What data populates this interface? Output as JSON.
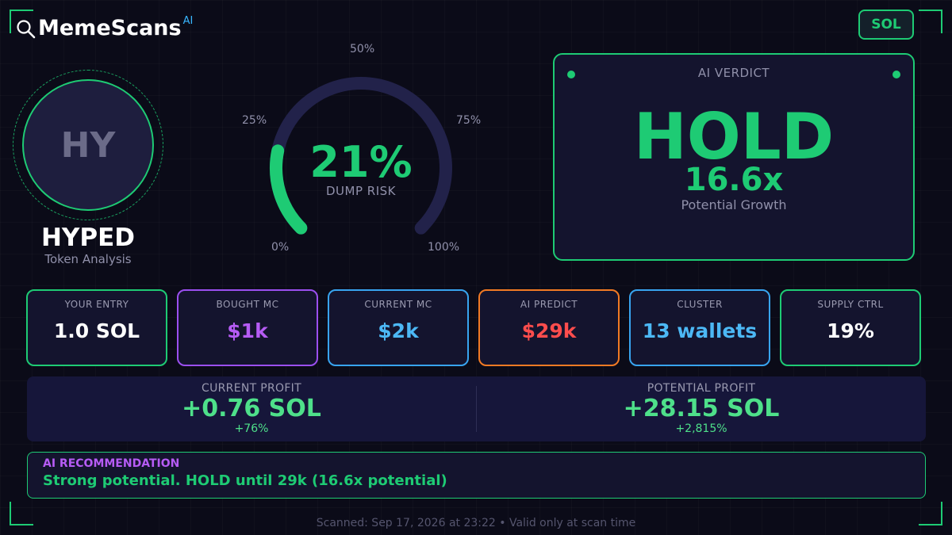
{
  "brand": {
    "name": "MemeScans",
    "superscript": "AI",
    "icon": "magnifier-icon"
  },
  "chain_badge": {
    "label": "SOL"
  },
  "token": {
    "avatar_initials": "HY",
    "name": "HYPED",
    "subtitle": "Token Analysis"
  },
  "gauge": {
    "value_label": "21%",
    "value": 21,
    "label": "DUMP RISK",
    "ticks": [
      "0%",
      "25%",
      "50%",
      "75%",
      "100%"
    ]
  },
  "verdict": {
    "title": "AI VERDICT",
    "decision": "HOLD",
    "multiplier": "16.6x",
    "subtitle": "Potential Growth"
  },
  "stats": [
    {
      "label": "YOUR ENTRY",
      "value": "1.0 SOL",
      "border": "#1ecb74",
      "color": "#ffffff"
    },
    {
      "label": "BOUGHT MC",
      "value": "$1k",
      "border": "#9b4ff0",
      "color": "#b65cf5"
    },
    {
      "label": "CURRENT MC",
      "value": "$2k",
      "border": "#38a4f0",
      "color": "#4cb8f5"
    },
    {
      "label": "AI PREDICT",
      "value": "$29k",
      "border": "#f27a24",
      "color": "#ff4d4d"
    },
    {
      "label": "CLUSTER",
      "value": "13 wallets",
      "border": "#38a4f0",
      "color": "#4cb8f5"
    },
    {
      "label": "SUPPLY CTRL",
      "value": "19%",
      "border": "#1ecb74",
      "color": "#ffffff"
    }
  ],
  "profit": {
    "current": {
      "label": "CURRENT PROFIT",
      "value": "+0.76 SOL",
      "pct": "+76%"
    },
    "potential": {
      "label": "POTENTIAL PROFIT",
      "value": "+28.15 SOL",
      "pct": "+2,815%"
    }
  },
  "recommendation": {
    "title": "AI RECOMMENDATION",
    "text": "Strong potential. HOLD until 29k (16.6x potential)"
  },
  "footer": {
    "text": "Scanned: Sep 17, 2026 at 23:22  •  Valid only at scan time"
  },
  "colors": {
    "accent": "#1ecb74",
    "background": "#0b0b18",
    "panel": "#14142e"
  }
}
